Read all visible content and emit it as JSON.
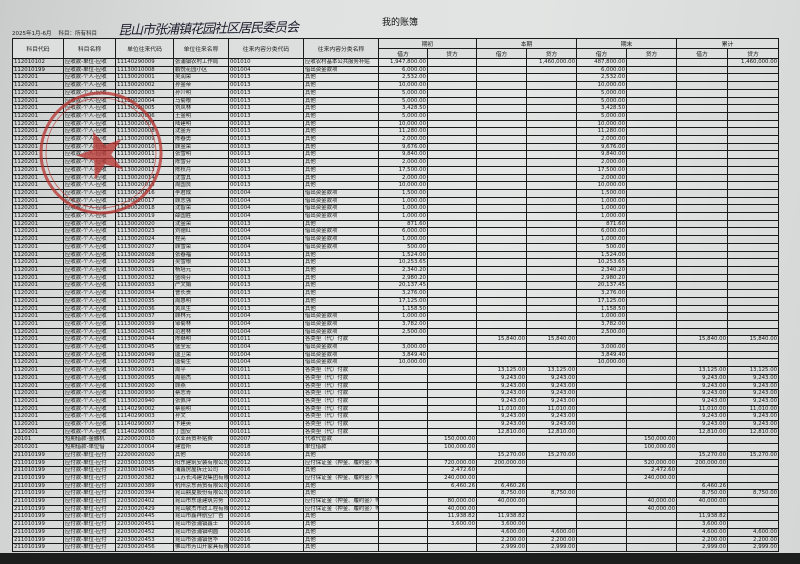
{
  "document": {
    "title": "我的账簿",
    "period": "2025年1月-6月",
    "subject_filter": "科目：所有科目",
    "handwritten_note": "昆山市张浦镇花园社区居民委员会",
    "stamp_color": "#b8332f"
  },
  "table": {
    "headers": [
      "科目代码",
      "科目名称",
      "单位往来代码",
      "单位往来名称",
      "往来内容分类代码",
      "往来内容分类名称"
    ],
    "groups": [
      "期初",
      "本期",
      "期末",
      "累计"
    ],
    "debit": "借方",
    "credit": "贷方",
    "rows": [
      [
        "112010102",
        "应收款-单位-应收",
        "11140290009",
        "张浦镇农村工作局",
        "001010",
        "应收农村基本公共服务补贴",
        "1,947,800.00",
        "",
        "",
        "1,460,000.00",
        "487,800.00",
        "",
        "",
        "1,460,000.00"
      ],
      [
        "112010199",
        "应收款-单位-应收",
        "11130010008",
        "鹏悦花园小区",
        "001004",
        "借出资金款项",
        "6,000.00",
        "",
        "",
        "",
        "6,000.00",
        "",
        "",
        ""
      ],
      [
        "1120201",
        "应收款-个人-应收",
        "11130020001",
        "吴润荣",
        "001013",
        "其他",
        "2,532.00",
        "",
        "",
        "",
        "2,532.00",
        "",
        "",
        ""
      ],
      [
        "1120201",
        "应收款-个人-应收",
        "11130020002",
        "孙金帝",
        "001013",
        "其他",
        "10,000.00",
        "",
        "",
        "",
        "10,000.00",
        "",
        "",
        ""
      ],
      [
        "1120201",
        "应收款-个人-应收",
        "11130020003",
        "孙介明",
        "001013",
        "其他",
        "5,000.00",
        "",
        "",
        "",
        "5,000.00",
        "",
        "",
        ""
      ],
      [
        "1120201",
        "应收款-个人-应收",
        "11130020004",
        "马菊根",
        "001013",
        "其他",
        "5,000.00",
        "",
        "",
        "",
        "5,000.00",
        "",
        "",
        ""
      ],
      [
        "1120201",
        "应收款-个人-应收",
        "11130020005",
        "刘凤林",
        "001013",
        "其他",
        "3,428.50",
        "",
        "",
        "",
        "3,428.50",
        "",
        "",
        ""
      ],
      [
        "1120201",
        "应收款-个人-应收",
        "11130020006",
        "王金明",
        "001013",
        "其他",
        "5,000.00",
        "",
        "",
        "",
        "5,000.00",
        "",
        "",
        ""
      ],
      [
        "1120201",
        "应收款-个人-应收",
        "11130020007",
        "陆建明",
        "001013",
        "其他",
        "10,000.00",
        "",
        "",
        "",
        "10,000.00",
        "",
        "",
        ""
      ],
      [
        "1120201",
        "应收款-个人-应收",
        "11130020008",
        "沈金芳",
        "001013",
        "其他",
        "11,280.00",
        "",
        "",
        "",
        "11,280.00",
        "",
        "",
        ""
      ],
      [
        "1120201",
        "应收款-个人-应收",
        "11130020009",
        "陈春勇",
        "001013",
        "其他",
        "2,000.00",
        "",
        "",
        "",
        "2,000.00",
        "",
        "",
        ""
      ],
      [
        "1120201",
        "应收款-个人-应收",
        "11130020010",
        "顾金荣",
        "001013",
        "其他",
        "9,676.00",
        "",
        "",
        "",
        "9,676.00",
        "",
        "",
        ""
      ],
      [
        "1120201",
        "应收款-个人-应收",
        "11130020011",
        "张雪明",
        "001013",
        "其他",
        "9,840.00",
        "",
        "",
        "",
        "9,840.00",
        "",
        "",
        ""
      ],
      [
        "1120201",
        "应收款-个人-应收",
        "11130020012",
        "陈雪芬",
        "001013",
        "其他",
        "2,000.00",
        "",
        "",
        "",
        "2,000.00",
        "",
        "",
        ""
      ],
      [
        "1120201",
        "应收款-个人-应收",
        "11130020013",
        "陈秋月",
        "001013",
        "其他",
        "17,500.00",
        "",
        "",
        "",
        "17,500.00",
        "",
        "",
        ""
      ],
      [
        "1120201",
        "应收款-个人-应收",
        "11130020014",
        "沈雪其",
        "001013",
        "其他",
        "2,000.00",
        "",
        "",
        "",
        "2,000.00",
        "",
        "",
        ""
      ],
      [
        "1120201",
        "应收款-个人-应收",
        "11130020015",
        "周国良",
        "001013",
        "其他",
        "10,000.00",
        "",
        "",
        "",
        "10,000.00",
        "",
        "",
        ""
      ],
      [
        "1120201",
        "应收款-个人-应收",
        "11130020016",
        "李君成",
        "001004",
        "借出资金款项",
        "1,500.00",
        "",
        "",
        "",
        "1,500.00",
        "",
        "",
        ""
      ],
      [
        "1120201",
        "应收款-个人-应收",
        "11130020017",
        "顾志强",
        "001004",
        "借出资金款项",
        "1,000.00",
        "",
        "",
        "",
        "1,000.00",
        "",
        "",
        ""
      ],
      [
        "1120201",
        "应收款-个人-应收",
        "11130020018",
        "沈智荣",
        "001004",
        "借出资金款项",
        "1,000.00",
        "",
        "",
        "",
        "1,000.00",
        "",
        "",
        ""
      ],
      [
        "1120201",
        "应收款-个人-应收",
        "11130020019",
        "薛国胜",
        "001004",
        "借出资金款项",
        "1,000.00",
        "",
        "",
        "",
        "1,000.00",
        "",
        "",
        ""
      ],
      [
        "1120201",
        "应收款-个人-应收",
        "11130020020",
        "沈金荣",
        "001013",
        "其他",
        "871.60",
        "",
        "",
        "",
        "871.60",
        "",
        "",
        ""
      ],
      [
        "1120201",
        "应收款-个人-应收",
        "11130020023",
        "刘德红",
        "001004",
        "借出资金款项",
        "6,000.00",
        "",
        "",
        "",
        "6,000.00",
        "",
        "",
        ""
      ],
      [
        "1120201",
        "应收款-个人-应收",
        "11130020024",
        "程亮",
        "001004",
        "借出资金款项",
        "1,000.00",
        "",
        "",
        "",
        "1,000.00",
        "",
        "",
        ""
      ],
      [
        "1120201",
        "应收款-个人-应收",
        "11130020027",
        "顾雪荣",
        "001004",
        "借出资金款项",
        "500.00",
        "",
        "",
        "",
        "500.00",
        "",
        "",
        ""
      ],
      [
        "1120201",
        "应收款-个人-应收",
        "11130020028",
        "张春福",
        "001013",
        "其他",
        "1,524.00",
        "",
        "",
        "",
        "1,524.00",
        "",
        "",
        ""
      ],
      [
        "1120201",
        "应收款-个人-应收",
        "11130020029",
        "吴雪根",
        "001013",
        "其他",
        "10,253.65",
        "",
        "",
        "",
        "10,253.65",
        "",
        "",
        ""
      ],
      [
        "1120201",
        "应收款-个人-应收",
        "11130020031",
        "杨培元",
        "001013",
        "其他",
        "2,340.20",
        "",
        "",
        "",
        "2,340.20",
        "",
        "",
        ""
      ],
      [
        "1120201",
        "应收款-个人-应收",
        "11130020032",
        "盛晓芬",
        "001013",
        "其他",
        "2,980.20",
        "",
        "",
        "",
        "2,980.20",
        "",
        "",
        ""
      ],
      [
        "1120201",
        "应收款-个人-应收",
        "11130020033",
        "严文娟",
        "001013",
        "其他",
        "20,137.45",
        "",
        "",
        "",
        "20,137.45",
        "",
        "",
        ""
      ],
      [
        "1120201",
        "应收款-个人-应收",
        "11130020034",
        "曹长贵",
        "001013",
        "其他",
        "3,276.00",
        "",
        "",
        "",
        "3,276.00",
        "",
        "",
        ""
      ],
      [
        "1120201",
        "应收款-个人-应收",
        "11130020035",
        "周惠明",
        "001013",
        "其他",
        "17,125.00",
        "",
        "",
        "",
        "17,125.00",
        "",
        "",
        ""
      ],
      [
        "1120201",
        "应收款-个人-应收",
        "11130020036",
        "黄凤生",
        "001013",
        "其他",
        "1,158.50",
        "",
        "",
        "",
        "1,158.50",
        "",
        "",
        ""
      ],
      [
        "1120201",
        "应收款-个人-应收",
        "11130020037",
        "顾林元",
        "001004",
        "借出资金款项",
        "1,000.00",
        "",
        "",
        "",
        "1,000.00",
        "",
        "",
        ""
      ],
      [
        "1120201",
        "应收款-个人-应收",
        "11130020039",
        "邹菊林",
        "001004",
        "借出资金款项",
        "3,782.00",
        "",
        "",
        "",
        "3,782.00",
        "",
        "",
        ""
      ],
      [
        "1120201",
        "应收款-个人-应收",
        "11130020043",
        "范君林",
        "001004",
        "借出资金款项",
        "2,500.00",
        "",
        "",
        "",
        "2,500.00",
        "",
        "",
        ""
      ],
      [
        "1120201",
        "应收款-个人-应收",
        "11130020044",
        "陈继明",
        "001011",
        "各类垫（代）付款",
        "",
        "",
        "15,840.00",
        "15,840.00",
        "",
        "",
        "15,840.00",
        "15,840.00"
      ],
      [
        "1120201",
        "应收款-个人-应收",
        "11130020045",
        "盛全宏",
        "001004",
        "借出资金款项",
        "3,000.00",
        "",
        "",
        "",
        "3,000.00",
        "",
        "",
        ""
      ],
      [
        "1120201",
        "应收款-个人-应收",
        "11130020049",
        "唐卫荣",
        "001004",
        "借出资金款项",
        "3,849.40",
        "",
        "",
        "",
        "3,849.40",
        "",
        "",
        ""
      ],
      [
        "1120201",
        "应收款-个人-应收",
        "11130020073",
        "唐菊生",
        "001004",
        "借出资金款项",
        "10,000.00",
        "",
        "",
        "",
        "10,000.00",
        "",
        "",
        ""
      ],
      [
        "1120201",
        "应收款-个人-应收",
        "11130020091",
        "周平",
        "001011",
        "各类垫（代）付款",
        "",
        "",
        "13,125.00",
        "13,125.00",
        "",
        "",
        "13,125.00",
        "13,125.00"
      ],
      [
        "1120201",
        "应收款-个人-应收",
        "11130020095",
        "周丽杰",
        "001011",
        "各类垫（代）付款",
        "",
        "",
        "9,243.00",
        "9,243.00",
        "",
        "",
        "9,243.00",
        "9,243.00"
      ],
      [
        "1120201",
        "应收款-个人-应收",
        "11130020920",
        "顾燕",
        "001011",
        "各类垫（代）付款",
        "",
        "",
        "9,243.00",
        "9,243.00",
        "",
        "",
        "9,243.00",
        "9,243.00"
      ],
      [
        "1120201",
        "应收款-个人-应收",
        "11130020930",
        "蔡志青",
        "001011",
        "各类垫（代）付款",
        "",
        "",
        "9,243.00",
        "9,243.00",
        "",
        "",
        "9,243.00",
        "9,243.00"
      ],
      [
        "1120201",
        "应收款-个人-应收",
        "11130020940",
        "张佩萍",
        "001011",
        "各类垫（代）付款",
        "",
        "",
        "9,243.00",
        "9,243.00",
        "",
        "",
        "9,243.00",
        "9,243.00"
      ],
      [
        "1120201",
        "应收款-个人-应收",
        "11140290002",
        "蔡丽明",
        "001011",
        "各类垫（代）付款",
        "",
        "",
        "11,010.00",
        "11,010.00",
        "",
        "",
        "11,010.00",
        "11,010.00"
      ],
      [
        "1120201",
        "应收款-个人-应收",
        "11140290003",
        "孙文",
        "001011",
        "各类垫（代）付款",
        "",
        "",
        "9,243.00",
        "9,243.00",
        "",
        "",
        "9,243.00",
        "9,243.00"
      ],
      [
        "1120201",
        "应收款-个人-应收",
        "11140290007",
        "卞建英",
        "001011",
        "各类垫（代）付款",
        "",
        "",
        "9,243.00",
        "9,243.00",
        "",
        "",
        "9,243.00",
        "9,243.00"
      ],
      [
        "1120201",
        "应收款-个人-应收",
        "11140290008",
        "丁国安",
        "001011",
        "各类垫（代）付款",
        "",
        "",
        "12,810.00",
        "12,810.00",
        "",
        "",
        "12,810.00",
        "12,810.00"
      ],
      [
        "20101",
        "短期借款-金融机",
        "22200020010",
        "农业商贸补贴费",
        "002007",
        "代收代管款",
        "",
        "150,000.00",
        "",
        "",
        "",
        "150,000.00",
        "",
        ""
      ],
      [
        "2010201",
        "短期借款-单位借",
        "22200010004",
        "建管所",
        "002018",
        "单位借款",
        "",
        "100,000.00",
        "",
        "",
        "",
        "100,000.00",
        "",
        ""
      ],
      [
        "211010199",
        "应付款-单位-应付",
        "22200020020",
        "其他",
        "002016",
        "其他",
        "",
        "",
        "15,270.00",
        "15,270.00",
        "",
        "",
        "15,270.00",
        "15,270.00"
      ],
      [
        "211010199",
        "应付款-单位-应付",
        "22030010035",
        "阳东建筑安装有限公司",
        "002012",
        "应付保证金（押金、履约金）等",
        "",
        "720,000.00",
        "200,000.00",
        "",
        "",
        "520,000.00",
        "200,000.00",
        ""
      ],
      [
        "211010199",
        "应付款-单位-应付",
        "22030010045",
        "浦鑫房屋拆迁公司",
        "002016",
        "其他",
        "",
        "2,472.60",
        "",
        "",
        "",
        "2,472.60",
        "",
        ""
      ],
      [
        "211010199",
        "应付款-单位-应付",
        "22030020382",
        "江苏长鸿建设集团有限公司",
        "002012",
        "应付保证金（押金、履约金）等",
        "",
        "240,000.00",
        "",
        "",
        "",
        "240,000.00",
        "",
        ""
      ],
      [
        "211010199",
        "应付款-单位-应付",
        "22030020389",
        "杭州京东商贸有限公司",
        "002016",
        "其他",
        "",
        "6,460.26",
        "6,460.26",
        "",
        "",
        "",
        "6,460.26",
        ""
      ],
      [
        "211010199",
        "应付款-单位-应付",
        "22030020394",
        "昆山鼎夏股份有限公司",
        "002016",
        "其他",
        "",
        "",
        "8,750.00",
        "8,750.00",
        "",
        "",
        "8,750.00",
        "8,750.00"
      ],
      [
        "211010199",
        "应付款-单位-应付",
        "22030020402",
        "昆山市东蓬建筑劳务",
        "002012",
        "应付保证金（押金、履约金）等",
        "",
        "80,000.00",
        "40,000.00",
        "",
        "",
        "40,000.00",
        "40,000.00",
        ""
      ],
      [
        "211010199",
        "应付款-单位-应付",
        "22030020429",
        "昆山敏杰市政工程有限",
        "002012",
        "应付保证金（押金、履约金）等",
        "",
        "40,000.00",
        "",
        "",
        "",
        "40,000.00",
        "",
        ""
      ],
      [
        "211010199",
        "应付款-单位-应付",
        "22030020445",
        "昆山市鑫祥航空广告",
        "002016",
        "其他",
        "",
        "11,938.82",
        "11,938.82",
        "",
        "",
        "",
        "11,938.82",
        ""
      ],
      [
        "211010199",
        "应付款-单位-应付",
        "22030020451",
        "昆山市张浦镇鑫士",
        "002016",
        "其他",
        "",
        "3,600.00",
        "3,600.00",
        "",
        "",
        "",
        "3,600.00",
        ""
      ],
      [
        "211010199",
        "应付款-单位-应付",
        "22030020452",
        "昆山市张浦镇明圆",
        "002016",
        "其他",
        "",
        "",
        "4,600.00",
        "4,600.00",
        "",
        "",
        "4,600.00",
        "4,600.00"
      ],
      [
        "211010199",
        "应付款-单位-应付",
        "22030020453",
        "昆山市张浦镇信华",
        "002016",
        "其他",
        "",
        "",
        "2,200.00",
        "2,200.00",
        "",
        "",
        "2,200.00",
        "2,200.00"
      ],
      [
        "211010199",
        "应付款-单位-应付",
        "22030020456",
        "佛山市芳山开家具有限",
        "002016",
        "其他",
        "",
        "",
        "2,999.00",
        "2,999.00",
        "",
        "",
        "2,999.00",
        "2,999.00"
      ]
    ]
  }
}
